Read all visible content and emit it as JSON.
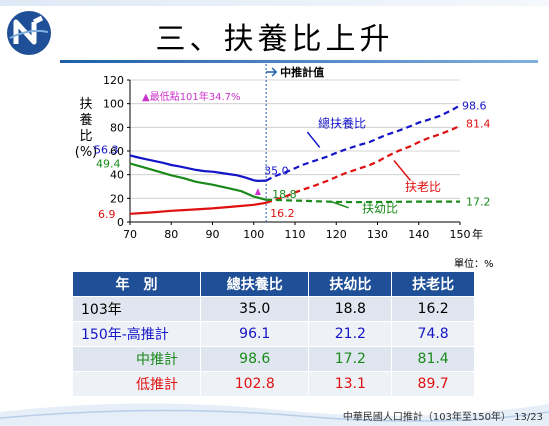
{
  "header": {
    "title": "三、扶養比上升"
  },
  "chart_data": {
    "type": "line",
    "x_ticks": [
      70,
      80,
      90,
      100,
      110,
      120,
      130,
      140,
      150
    ],
    "x_unit_label": "年",
    "y_ticks": [
      0,
      20,
      40,
      60,
      80,
      100,
      120
    ],
    "ylabel": "扶養比(%)",
    "xlim": [
      70,
      150
    ],
    "ylim": [
      0,
      120
    ],
    "divider_x": 103,
    "divider_label": "中推計值",
    "min_annotation": "▲最低點101年34.7%",
    "series": [
      {
        "name": "總扶養比",
        "color": "#1515c8",
        "x": [
          70,
          72,
          74,
          76,
          78,
          80,
          82,
          84,
          86,
          88,
          90,
          92,
          94,
          96,
          98,
          100,
          101,
          103,
          105,
          108,
          110,
          112,
          115,
          118,
          120,
          122,
          125,
          128,
          130,
          132,
          135,
          138,
          140,
          142,
          145,
          148,
          150
        ],
        "y": [
          56.3,
          54.5,
          53.0,
          51.5,
          50.0,
          48.2,
          47.0,
          45.5,
          44.0,
          43.0,
          42.5,
          41.5,
          40.5,
          39.5,
          37.5,
          35.2,
          34.7,
          35.0,
          38.5,
          42.5,
          45.5,
          48.5,
          52.0,
          55.5,
          58.5,
          61.0,
          64.5,
          67.5,
          70.5,
          73.5,
          77.0,
          81.0,
          84.0,
          86.0,
          89.5,
          94.5,
          98.6
        ]
      },
      {
        "name": "扶老比",
        "color": "#e01010",
        "x": [
          70,
          75,
          80,
          85,
          90,
          95,
          100,
          103,
          105,
          108,
          110,
          112,
          115,
          118,
          120,
          122,
          125,
          128,
          130,
          132,
          135,
          138,
          140,
          142,
          145,
          148,
          150
        ],
        "y": [
          6.9,
          8.0,
          9.5,
          10.5,
          11.5,
          13.0,
          14.5,
          16.2,
          18.5,
          22.0,
          25.0,
          27.5,
          31.0,
          35.0,
          38.0,
          41.0,
          44.5,
          48.0,
          51.0,
          55.0,
          60.0,
          64.0,
          67.5,
          70.5,
          74.0,
          78.0,
          81.4
        ]
      },
      {
        "name": "扶幼比",
        "color": "#1a8a1a",
        "x": [
          70,
          72,
          75,
          78,
          80,
          83,
          86,
          90,
          94,
          97,
          100,
          103,
          108,
          115,
          120,
          125,
          130,
          135,
          140,
          145,
          150
        ],
        "y": [
          49.4,
          47.5,
          44.5,
          41.5,
          39.5,
          37.0,
          34.0,
          31.5,
          28.5,
          26.0,
          21.5,
          18.8,
          18.3,
          17.6,
          17.0,
          16.8,
          16.9,
          17.1,
          17.2,
          17.2,
          17.2
        ]
      }
    ],
    "data_labels": {
      "total_start": "56.3",
      "total_mid": "35.0",
      "total_end": "98.6",
      "old_start": "6.9",
      "old_mid": "16.2",
      "old_end": "81.4",
      "young_start": "49.4",
      "young_mid": "18.8",
      "young_end": "17.2"
    },
    "series_labels": {
      "total": "總扶養比",
      "old": "扶老比",
      "young": "扶幼比"
    }
  },
  "unit_note": "單位：%",
  "table": {
    "headers": [
      "年　別",
      "總扶養比",
      "扶幼比",
      "扶老比"
    ],
    "rows": [
      {
        "label": "103年",
        "values": [
          "35.0",
          "18.8",
          "16.2"
        ]
      },
      {
        "label": "150年-高推計",
        "values": [
          "96.1",
          "21.2",
          "74.8"
        ]
      },
      {
        "label": "中推計",
        "values": [
          "98.6",
          "17.2",
          "81.4"
        ]
      },
      {
        "label": "低推計",
        "values": [
          "102.8",
          "13.1",
          "89.7"
        ]
      }
    ]
  },
  "footer": {
    "text": "中華民國人口推計（103年至150年） 13/23"
  }
}
